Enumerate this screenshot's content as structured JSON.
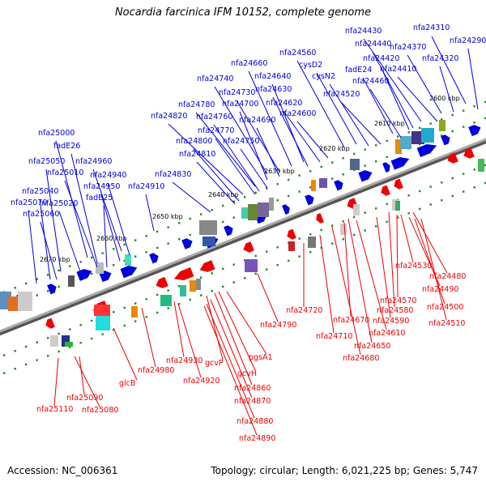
{
  "title": "Nocardia farcinica IFM 10152, complete genome",
  "footer": {
    "accession": "Accession: NC_006361",
    "summary": "Topology: circular; Length: 6,021,225 bp; Genes: 5,747"
  },
  "colors": {
    "forward_strand": "#0000dd",
    "reverse_strand": "#ee0000",
    "backbone": "#888888",
    "tick": "#228822"
  },
  "kbp_markers": [
    "2600 kbp",
    "2610 kbp",
    "2620 kbp",
    "2630 kbp",
    "2640 kbp",
    "2650 kbp",
    "2660 kbp",
    "2670 kbp"
  ],
  "forward_labels": [
    "nfa24310",
    "nfa24290",
    "nfa24430",
    "nfa24440",
    "nfa24370",
    "nfa24420",
    "nfa24320",
    "fadE24",
    "nfa24410",
    "nfa24460",
    "nfa24560",
    "cysD2",
    "cysN2",
    "nfa24520",
    "nfa24660",
    "nfa24640",
    "nfa24740",
    "nfa24630",
    "nfa24730",
    "nfa24620",
    "nfa24780",
    "nfa24700",
    "nfa24600",
    "nfa24820",
    "nfa24760",
    "nfa24690",
    "nfa24770",
    "nfa24800",
    "nfa24750",
    "nfa24810",
    "nfa24830",
    "nfa24910",
    "nfa25000",
    "fadE26",
    "nfa24960",
    "nfa25050",
    "nfa25010",
    "nfa24940",
    "nfa24950",
    "fadE25",
    "nfa25040",
    "nfa25020",
    "nfa25070",
    "nfa25060"
  ],
  "reverse_labels": [
    "nfa24530",
    "nfa24480",
    "nfa24490",
    "nfa24570",
    "nfa24500",
    "nfa24580",
    "nfa24510",
    "nfa24720",
    "nfa24590",
    "nfa24670",
    "nfa24610",
    "nfa24790",
    "nfa24710",
    "nfa24650",
    "nfa24680",
    "pgsA1",
    "nfa24930",
    "gcvP",
    "gcvH",
    "nfa24980",
    "nfa24920",
    "nfa24860",
    "glcB",
    "nfa24870",
    "nfa25090",
    "nfa25110",
    "nfa25080",
    "nfa24880",
    "nfa24890"
  ]
}
